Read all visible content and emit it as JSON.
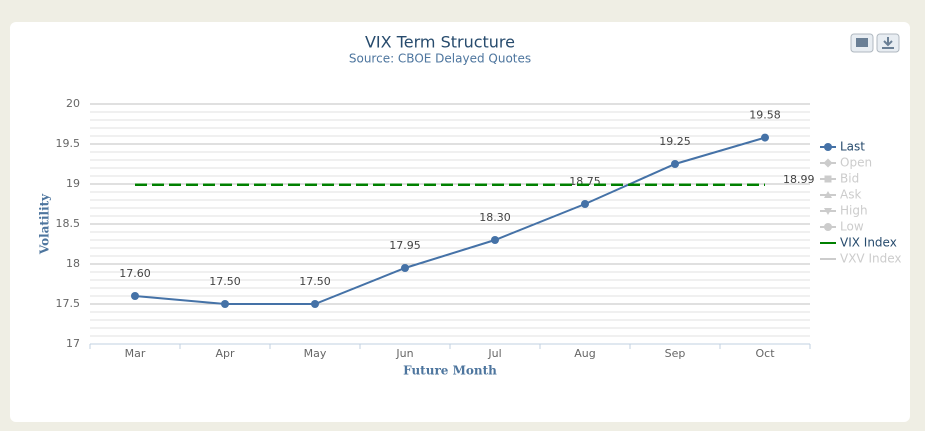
{
  "chart_data": {
    "type": "line",
    "title": "VIX Term Structure",
    "subtitle": "Source: CBOE Delayed Quotes",
    "x_label": "Future Month",
    "y_label": "Volatility",
    "categories": [
      "Mar",
      "Apr",
      "May",
      "Jun",
      "Jul",
      "Aug",
      "Sep",
      "Oct"
    ],
    "ylim": [
      17,
      20
    ],
    "yticks": [
      17,
      17.5,
      18,
      18.5,
      19,
      19.5,
      20
    ],
    "grid": true,
    "minor_grid": true,
    "legend": "right",
    "series": [
      {
        "name": "Last",
        "color": "#4572a7",
        "visible": true,
        "marker": "circle",
        "values": [
          17.6,
          17.5,
          17.5,
          17.95,
          18.3,
          18.75,
          19.25,
          19.58
        ],
        "value_labels": [
          "17.60",
          "17.50",
          "17.50",
          "17.95",
          "18.30",
          "18.75",
          "19.25",
          "19.58"
        ]
      },
      {
        "name": "Open",
        "color": "#cccccc",
        "visible": false,
        "marker": "diamond",
        "values": [
          null,
          null,
          null,
          null,
          null,
          null,
          null,
          null
        ]
      },
      {
        "name": "Bid",
        "color": "#cccccc",
        "visible": false,
        "marker": "square",
        "values": [
          null,
          null,
          null,
          null,
          null,
          null,
          null,
          null
        ]
      },
      {
        "name": "Ask",
        "color": "#cccccc",
        "visible": false,
        "marker": "triangle",
        "values": [
          null,
          null,
          null,
          null,
          null,
          null,
          null,
          null
        ]
      },
      {
        "name": "High",
        "color": "#cccccc",
        "visible": false,
        "marker": "triangle-down",
        "values": [
          null,
          null,
          null,
          null,
          null,
          null,
          null,
          null
        ]
      },
      {
        "name": "Low",
        "color": "#cccccc",
        "visible": false,
        "marker": "circle",
        "values": [
          null,
          null,
          null,
          null,
          null,
          null,
          null,
          null
        ]
      },
      {
        "name": "VIX Index",
        "color": "#008000",
        "visible": true,
        "dashed": true,
        "values": [
          18.99,
          18.99,
          18.99,
          18.99,
          18.99,
          18.99,
          18.99,
          18.99
        ],
        "value_labels": [
          null,
          null,
          null,
          null,
          null,
          null,
          null,
          "18.99"
        ]
      },
      {
        "name": "VXV Index",
        "color": "#cccccc",
        "visible": false,
        "values": [
          null,
          null,
          null,
          null,
          null,
          null,
          null,
          null
        ]
      }
    ]
  }
}
